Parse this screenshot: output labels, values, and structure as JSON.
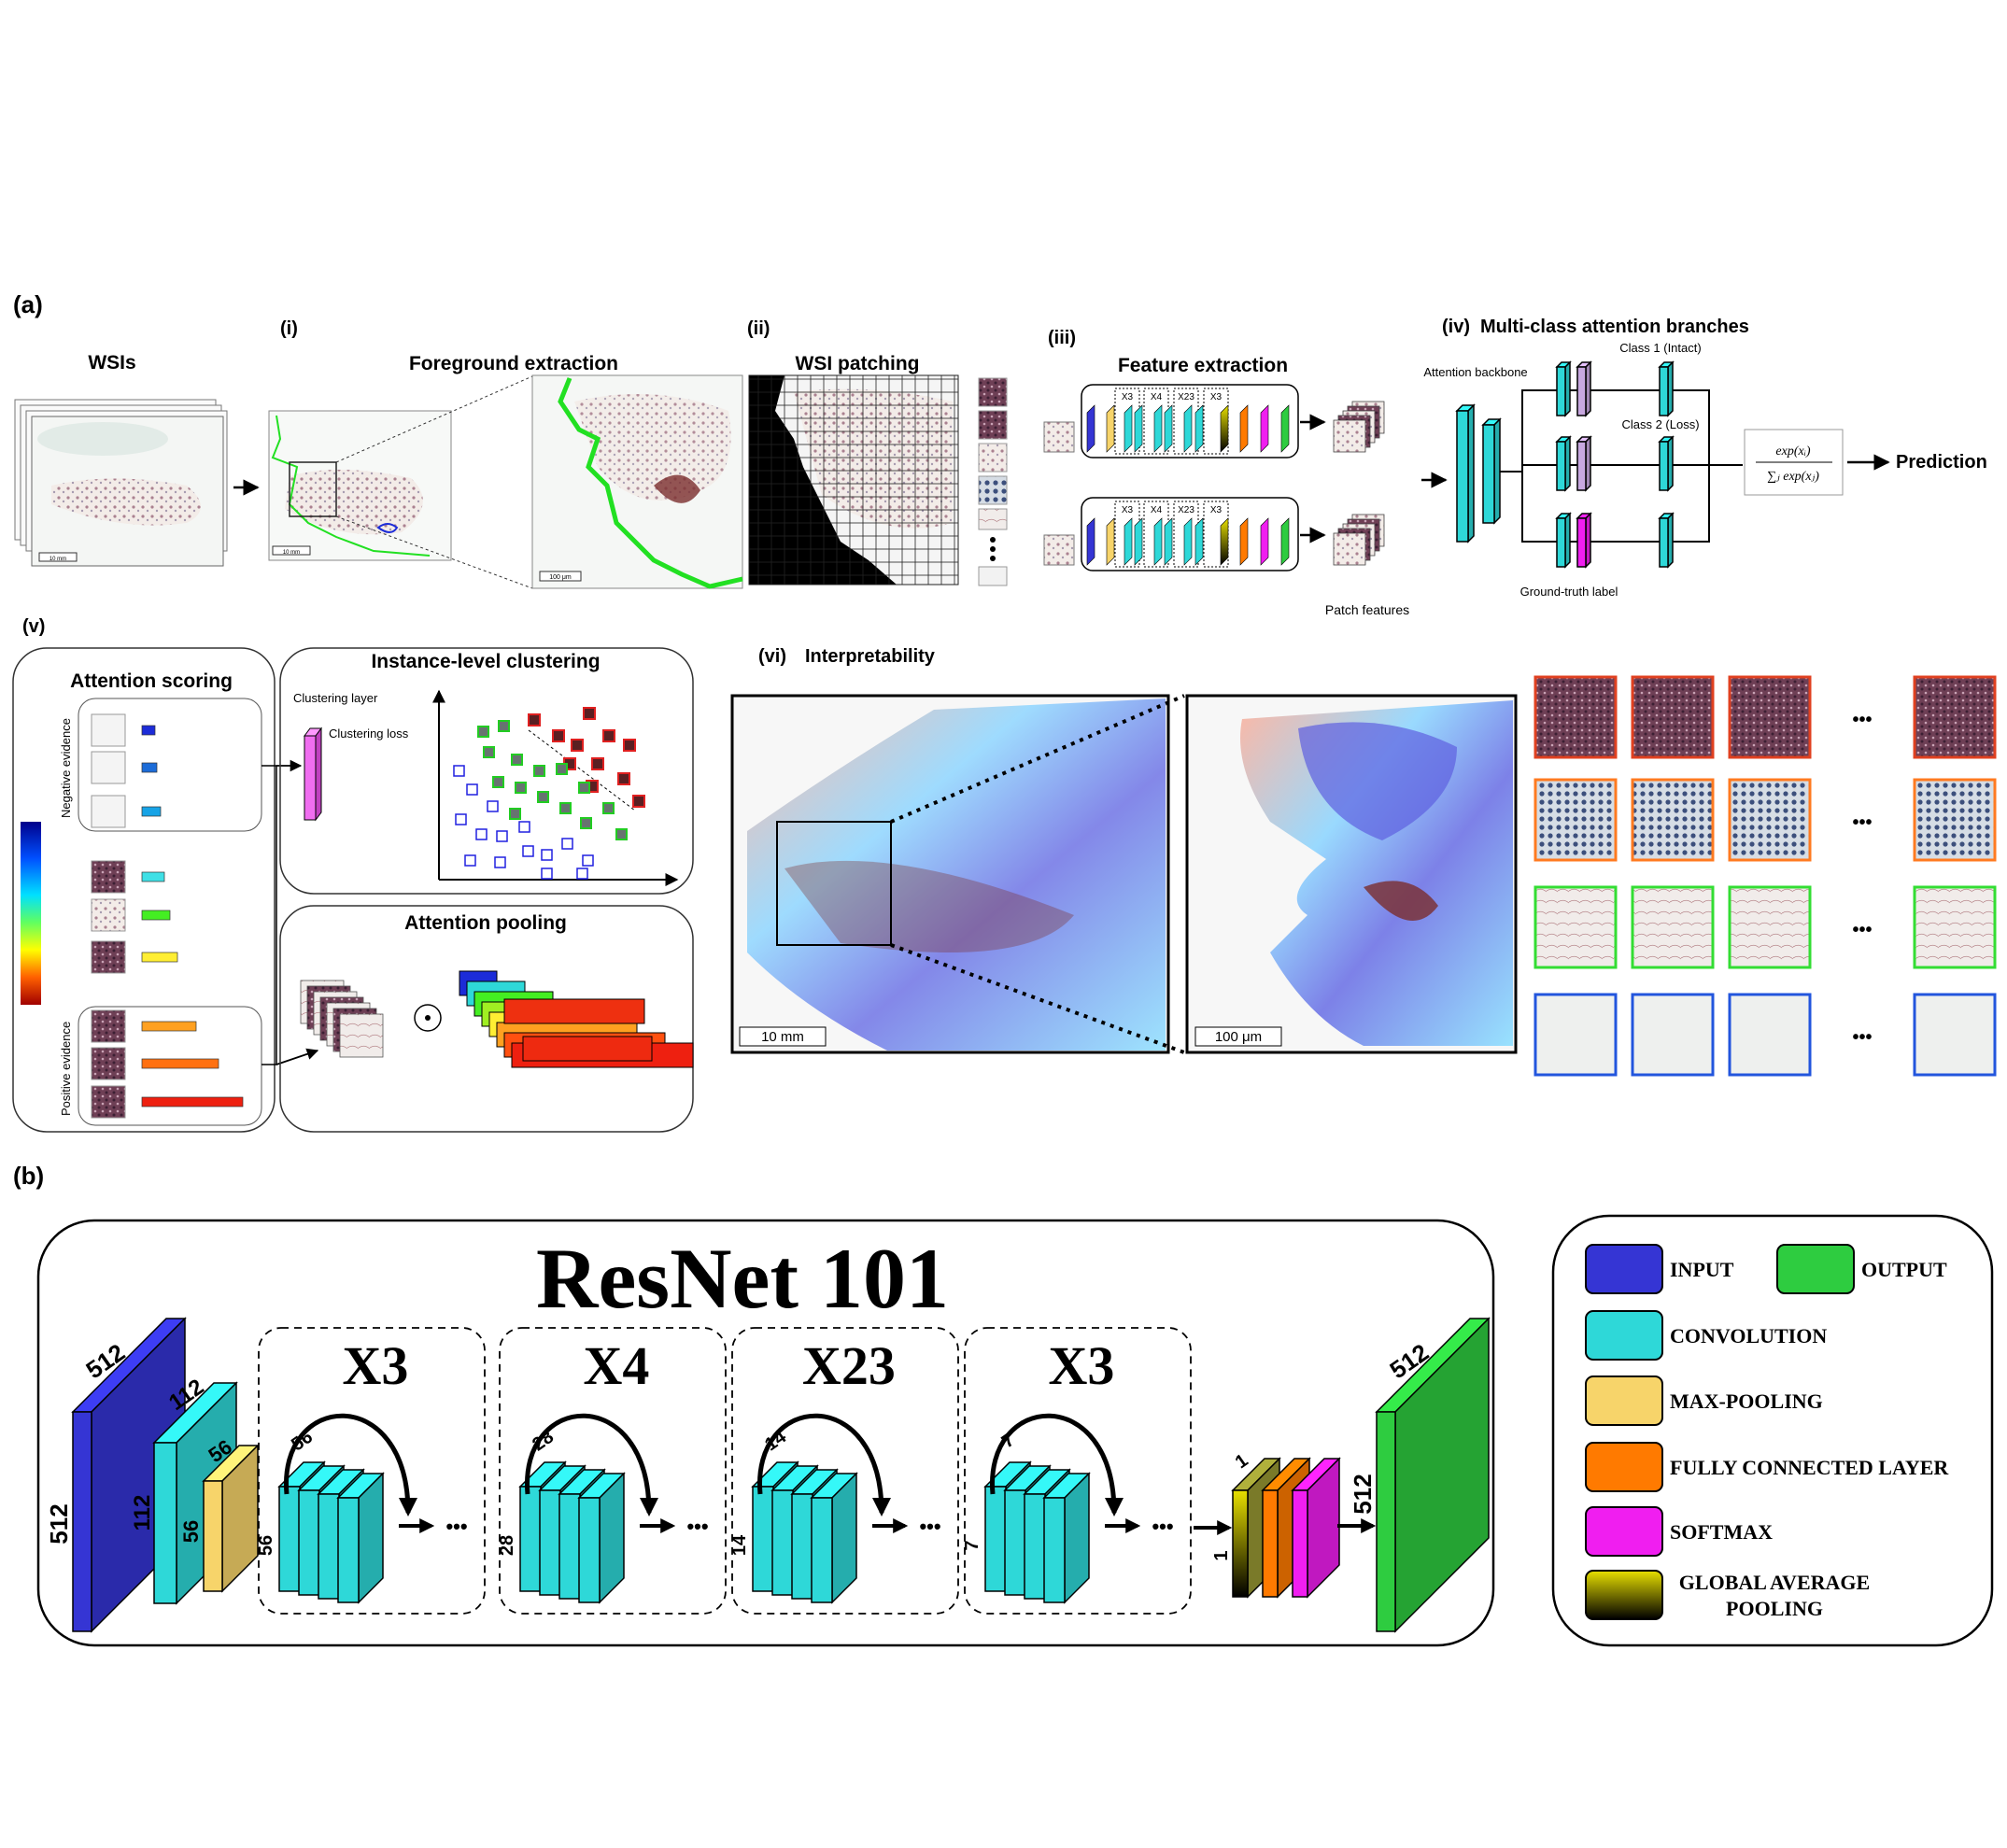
{
  "panel_a": {
    "label": "(a)",
    "wsis_title": "WSIs",
    "scale_10mm_small": "10 mm",
    "step_i_label": "(i)",
    "foreground_title": "Foreground extraction",
    "scale_100um_small": "100 μm",
    "step_ii_label": "(ii)",
    "patching_title": "WSI patching",
    "step_iii_label": "(iii)",
    "feature_title": "Feature extraction",
    "block_labels": [
      "X3",
      "X4",
      "X23",
      "X3"
    ],
    "patch_features_label": "Patch features",
    "step_iv_label": "(iv)",
    "multiclass_title": "Multi-class attention branches",
    "attention_backbone": "Attention backbone",
    "class1": "Class 1 (Intact)",
    "class2": "Class 2 (Loss)",
    "ground_truth": "Ground-truth label",
    "softmax_num": "exp(xᵢ)",
    "softmax_den": "∑ⱼ exp(xⱼ)",
    "prediction": "Prediction",
    "step_v_label": "(v)",
    "attention_scoring": "Attention scoring",
    "negative_evidence": "Negative evidence",
    "positive_evidence": "Positive evidence",
    "instance_clustering": "Instance-level clustering",
    "clustering_layer": "Clustering layer",
    "clustering_loss": "Clustering loss",
    "attention_pooling": "Attention pooling",
    "dot_op": "⊙",
    "step_vi_label": "(vi)",
    "interpretability": "Interpretability",
    "scale_10mm": "10 mm",
    "scale_100um": "100 μm",
    "ellipsis": "•••"
  },
  "panel_b": {
    "label": "(b)",
    "title": "ResNet 101",
    "input_dims": [
      "512",
      "512"
    ],
    "conv1_dims": [
      "112",
      "112"
    ],
    "pool_dims": [
      "56",
      "56"
    ],
    "stages": [
      {
        "repeat": "X3",
        "size": "56"
      },
      {
        "repeat": "X4",
        "size": "28"
      },
      {
        "repeat": "X23",
        "size": "14"
      },
      {
        "repeat": "X3",
        "size": "7"
      }
    ],
    "gap_dims": [
      "1",
      "1"
    ],
    "output_dims": [
      "512",
      "512"
    ],
    "ellipsis": "•••",
    "legend": {
      "input": "INPUT",
      "output": "OUTPUT",
      "convolution": "CONVOLUTION",
      "max_pooling": "MAX-POOLING",
      "fully_connected": "FULLY CONNECTED LAYER",
      "softmax": "SOFTMAX",
      "gap_line1": "GLOBAL AVERAGE",
      "gap_line2": "POOLING"
    }
  },
  "colors": {
    "input": "#3535d4",
    "convolution": "#2ed8d8",
    "max_pooling": "#f7d46a",
    "fully_connected": "#ff7a00",
    "softmax": "#f01ef0",
    "output": "#2ecc40",
    "tissue": "#7a3b55",
    "mask": "#22e022"
  }
}
